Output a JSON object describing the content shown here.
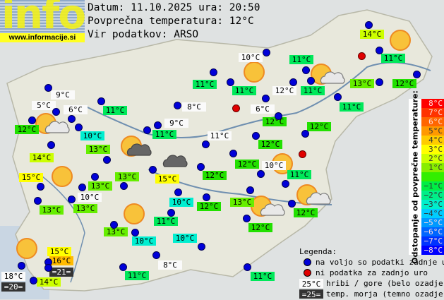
{
  "logo": {
    "text": "info",
    "url": "www.informacije.si"
  },
  "header": {
    "date_line": "Datum: 11.10.2025 ura: 20:50",
    "avg_temp_line": "Povprečna temperatura: 12°C",
    "source_line": "Vir podatkov: ARSO"
  },
  "stations": [
    {
      "temp": "9°C",
      "type": "mountain"
    },
    {
      "temp": "5°C",
      "type": "mountain"
    },
    {
      "temp": "6°C",
      "type": "mountain"
    },
    {
      "temp": "12°C"
    },
    {
      "temp": "11°C"
    },
    {
      "temp": "10°C"
    },
    {
      "temp": "13°C"
    },
    {
      "temp": "14°C"
    },
    {
      "temp": "15°C"
    },
    {
      "temp": "13°C"
    },
    {
      "temp": "10°C",
      "type": "mountain"
    },
    {
      "temp": "13°C"
    },
    {
      "temp": "13°C"
    },
    {
      "temp": "13°C"
    },
    {
      "temp": "10°C"
    },
    {
      "temp": "10°C"
    },
    {
      "temp": "12°C"
    },
    {
      "temp": "11°C"
    },
    {
      "temp": "10°C"
    },
    {
      "temp": "15°C"
    },
    {
      "temp": "16°C"
    },
    {
      "temp": "=21=",
      "type": "sea"
    },
    {
      "temp": "18°C",
      "type": "mountain"
    },
    {
      "temp": "=20=",
      "type": "sea"
    },
    {
      "temp": "14°C"
    },
    {
      "temp": "11°C"
    },
    {
      "temp": "8°C",
      "type": "mountain"
    },
    {
      "temp": "11°C"
    },
    {
      "temp": "10°C",
      "type": "mountain"
    },
    {
      "temp": "11°C"
    },
    {
      "temp": "11°C"
    },
    {
      "temp": "12°C",
      "type": "mountain"
    },
    {
      "temp": "8°C",
      "type": "mountain"
    },
    {
      "temp": "6°C",
      "type": "mountain"
    },
    {
      "temp": "9°C",
      "type": "mountain"
    },
    {
      "temp": "11°C"
    },
    {
      "temp": "12°C"
    },
    {
      "temp": "11°C",
      "type": "mountain"
    },
    {
      "temp": "12°C"
    },
    {
      "temp": "14°C"
    },
    {
      "temp": "11°C"
    },
    {
      "temp": "11°C"
    },
    {
      "temp": "11°C"
    },
    {
      "temp": "13°C"
    },
    {
      "temp": "12°C"
    },
    {
      "temp": "11°C"
    },
    {
      "temp": "12°C"
    },
    {
      "temp": "12°C"
    },
    {
      "temp": "10°C",
      "type": "mountain"
    },
    {
      "temp": "12°C"
    },
    {
      "temp": "15°C"
    },
    {
      "temp": "11°C"
    },
    {
      "temp": "13°C"
    },
    {
      "temp": "12°C"
    },
    {
      "temp": "12°C"
    },
    {
      "temp": "13°C"
    }
  ],
  "scale": {
    "title": "Odstopanje od povprečne temperature:",
    "steps": [
      {
        "label": "8°C",
        "color": "#ff0000"
      },
      {
        "label": "7°C",
        "color": "#ff3300"
      },
      {
        "label": "6°C",
        "color": "#ff6600"
      },
      {
        "label": "5°C",
        "color": "#ff9900"
      },
      {
        "label": "4°C",
        "color": "#ffcc00"
      },
      {
        "label": "3°C",
        "color": "#ffff00"
      },
      {
        "label": "2°C",
        "color": "#ccff00"
      },
      {
        "label": "1°C",
        "color": "#88ee00"
      },
      {
        "label": "",
        "color": "#33ee00"
      },
      {
        "label": "−1°C",
        "color": "#00ee44"
      },
      {
        "label": "−2°C",
        "color": "#00ee88"
      },
      {
        "label": "−3°C",
        "color": "#00eecc"
      },
      {
        "label": "−4°C",
        "color": "#00ccff"
      },
      {
        "label": "−5°C",
        "color": "#0099ff"
      },
      {
        "label": "−6°C",
        "color": "#0066ff"
      },
      {
        "label": "−7°C",
        "color": "#0033ff"
      },
      {
        "label": "−8°C",
        "color": "#0000ff"
      }
    ]
  },
  "legend": {
    "title": "Legenda:",
    "available": "na voljo so podatki zadnje ure",
    "missing": "ni podatka za zadnjo uro",
    "mountain_sample": "25°C",
    "mountain_text": "hribi / gore (belo ozadje)",
    "sea_sample": "=25=",
    "sea_text": "temp. morja (temno ozadje)",
    "colors": {
      "available": "#0000d8",
      "missing": "#e00000"
    }
  }
}
